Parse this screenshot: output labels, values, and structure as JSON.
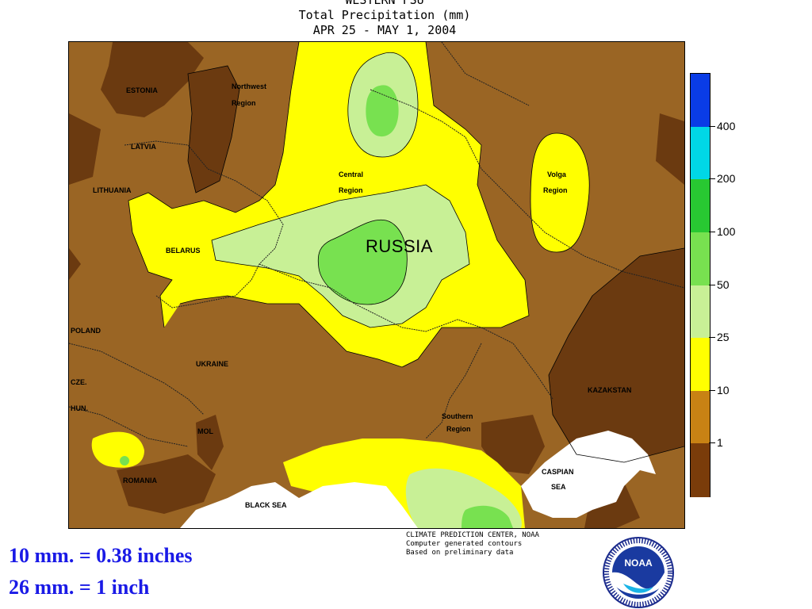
{
  "title": {
    "line1": "WESTERN FSU",
    "line2": "Total Precipitation (mm)",
    "line3": "APR 25 - MAY  1, 2004"
  },
  "map_labels": {
    "estonia": "ESTONIA",
    "latvia": "LATVIA",
    "lithuania": "LITHUANIA",
    "belarus": "BELARUS",
    "poland": "POLAND",
    "cze": "CZE.",
    "hun": "HUN.",
    "romania": "ROMANIA",
    "mol": "MOL",
    "ukraine": "UKRAINE",
    "northwest_region_1": "Northwest",
    "northwest_region_2": "Region",
    "central_region_1": "Central",
    "central_region_2": "Region",
    "volga_region_1": "Volga",
    "volga_region_2": "Region",
    "southern_region_1": "Southern",
    "southern_region_2": "Region",
    "russia": "RUSSIA",
    "kazakstan": "KAZAKSTAN",
    "black_sea": "BLACK SEA",
    "caspian_sea_1": "CASPIAN",
    "caspian_sea_2": "SEA"
  },
  "legend": {
    "thresholds": [
      "400",
      "200",
      "100",
      "50",
      "25",
      "10",
      "1"
    ],
    "colors": [
      "#0a3ce6",
      "#00d7e6",
      "#28c832",
      "#78e150",
      "#c8f096",
      "#ffff00",
      "#c88214",
      "#7a3c0a"
    ]
  },
  "credits": {
    "line1": "CLIMATE PREDICTION CENTER, NOAA",
    "line2": "Computer generated contours",
    "line3": "Based on preliminary data"
  },
  "conversions": {
    "line1": "10 mm. = 0.38 inches",
    "line2": "26 mm. = 1 inch"
  },
  "logo": {
    "text": "NOAA"
  }
}
